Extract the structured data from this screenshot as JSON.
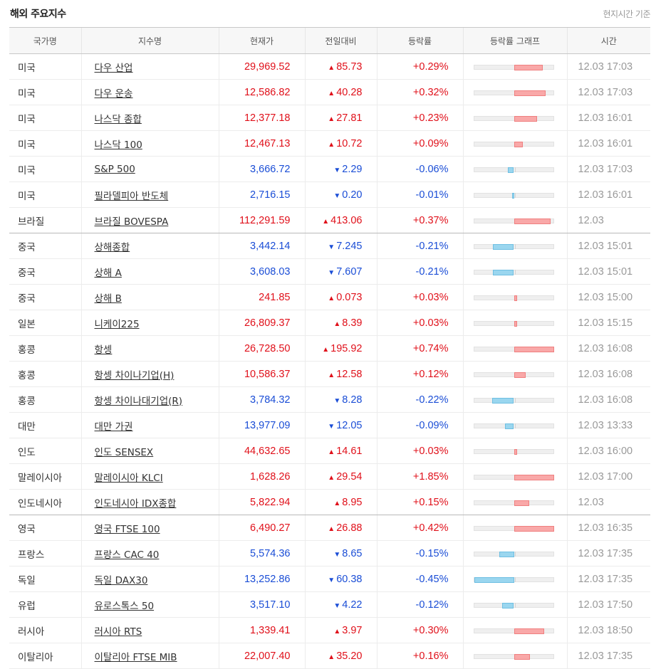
{
  "header": {
    "title": "해외 주요지수",
    "note": "현지시간 기준"
  },
  "columns": [
    "국가명",
    "지수명",
    "현재가",
    "전일대비",
    "등락률",
    "등락률 그래프",
    "시간"
  ],
  "colors": {
    "up": "#e0101a",
    "down": "#1a4dd6"
  },
  "rows": [
    {
      "country": "미국",
      "index": "다우 산업",
      "price": "29,969.52",
      "dir": "up",
      "change": "85.73",
      "rate": "+0.29%",
      "rate_value": 0.29,
      "time": "12.03 17:03"
    },
    {
      "country": "미국",
      "index": "다우 운송",
      "price": "12,586.82",
      "dir": "up",
      "change": "40.28",
      "rate": "+0.32%",
      "rate_value": 0.32,
      "time": "12.03 17:03"
    },
    {
      "country": "미국",
      "index": "나스닥 종합",
      "price": "12,377.18",
      "dir": "up",
      "change": "27.81",
      "rate": "+0.23%",
      "rate_value": 0.23,
      "time": "12.03 16:01"
    },
    {
      "country": "미국",
      "index": "나스닥 100",
      "price": "12,467.13",
      "dir": "up",
      "change": "10.72",
      "rate": "+0.09%",
      "rate_value": 0.09,
      "time": "12.03 16:01"
    },
    {
      "country": "미국",
      "index": "S&P 500",
      "price": "3,666.72",
      "dir": "down",
      "change": "2.29",
      "rate": "-0.06%",
      "rate_value": -0.06,
      "time": "12.03 17:03"
    },
    {
      "country": "미국",
      "index": "필라델피아 반도체",
      "price": "2,716.15",
      "dir": "down",
      "change": "0.20",
      "rate": "-0.01%",
      "rate_value": -0.01,
      "time": "12.03 16:01"
    },
    {
      "country": "브라질",
      "index": "브라질 BOVESPA",
      "price": "112,291.59",
      "dir": "up",
      "change": "413.06",
      "rate": "+0.37%",
      "rate_value": 0.37,
      "time": "12.03",
      "group_end": true
    },
    {
      "country": "중국",
      "index": "상해종합",
      "price": "3,442.14",
      "dir": "down",
      "change": "7.245",
      "rate": "-0.21%",
      "rate_value": -0.21,
      "time": "12.03 15:01"
    },
    {
      "country": "중국",
      "index": "상해 A",
      "price": "3,608.03",
      "dir": "down",
      "change": "7.607",
      "rate": "-0.21%",
      "rate_value": -0.21,
      "time": "12.03 15:01"
    },
    {
      "country": "중국",
      "index": "상해 B",
      "price": "241.85",
      "dir": "up",
      "change": "0.073",
      "rate": "+0.03%",
      "rate_value": 0.03,
      "time": "12.03 15:00"
    },
    {
      "country": "일본",
      "index": "니케이225",
      "price": "26,809.37",
      "dir": "up",
      "change": "8.39",
      "rate": "+0.03%",
      "rate_value": 0.03,
      "time": "12.03 15:15"
    },
    {
      "country": "홍콩",
      "index": "항셍",
      "price": "26,728.50",
      "dir": "up",
      "change": "195.92",
      "rate": "+0.74%",
      "rate_value": 0.74,
      "time": "12.03 16:08"
    },
    {
      "country": "홍콩",
      "index": "항셍 차이나기업(H)",
      "price": "10,586.37",
      "dir": "up",
      "change": "12.58",
      "rate": "+0.12%",
      "rate_value": 0.12,
      "time": "12.03 16:08"
    },
    {
      "country": "홍콩",
      "index": "항셍 차이나대기업(R)",
      "price": "3,784.32",
      "dir": "down",
      "change": "8.28",
      "rate": "-0.22%",
      "rate_value": -0.22,
      "time": "12.03 16:08"
    },
    {
      "country": "대만",
      "index": "대만 가권",
      "price": "13,977.09",
      "dir": "down",
      "change": "12.05",
      "rate": "-0.09%",
      "rate_value": -0.09,
      "time": "12.03 13:33"
    },
    {
      "country": "인도",
      "index": "인도 SENSEX",
      "price": "44,632.65",
      "dir": "up",
      "change": "14.61",
      "rate": "+0.03%",
      "rate_value": 0.03,
      "time": "12.03 16:00"
    },
    {
      "country": "말레이시아",
      "index": "말레이시아 KLCI",
      "price": "1,628.26",
      "dir": "up",
      "change": "29.54",
      "rate": "+1.85%",
      "rate_value": 1.85,
      "time": "12.03 17:00"
    },
    {
      "country": "인도네시아",
      "index": "인도네시아 IDX종합",
      "price": "5,822.94",
      "dir": "up",
      "change": "8.95",
      "rate": "+0.15%",
      "rate_value": 0.15,
      "time": "12.03",
      "group_end": true
    },
    {
      "country": "영국",
      "index": "영국 FTSE 100",
      "price": "6,490.27",
      "dir": "up",
      "change": "26.88",
      "rate": "+0.42%",
      "rate_value": 0.42,
      "time": "12.03 16:35"
    },
    {
      "country": "프랑스",
      "index": "프랑스 CAC 40",
      "price": "5,574.36",
      "dir": "down",
      "change": "8.65",
      "rate": "-0.15%",
      "rate_value": -0.15,
      "time": "12.03 17:35"
    },
    {
      "country": "독일",
      "index": "독일 DAX30",
      "price": "13,252.86",
      "dir": "down",
      "change": "60.38",
      "rate": "-0.45%",
      "rate_value": -0.45,
      "time": "12.03 17:35"
    },
    {
      "country": "유럽",
      "index": "유로스톡스 50",
      "price": "3,517.10",
      "dir": "down",
      "change": "4.22",
      "rate": "-0.12%",
      "rate_value": -0.12,
      "time": "12.03 17:50"
    },
    {
      "country": "러시아",
      "index": "러시아 RTS",
      "price": "1,339.41",
      "dir": "up",
      "change": "3.97",
      "rate": "+0.30%",
      "rate_value": 0.3,
      "time": "12.03 18:50"
    },
    {
      "country": "이탈리아",
      "index": "이탈리아 FTSE MIB",
      "price": "22,007.40",
      "dir": "up",
      "change": "35.20",
      "rate": "+0.16%",
      "rate_value": 0.16,
      "time": "12.03 17:35"
    }
  ]
}
